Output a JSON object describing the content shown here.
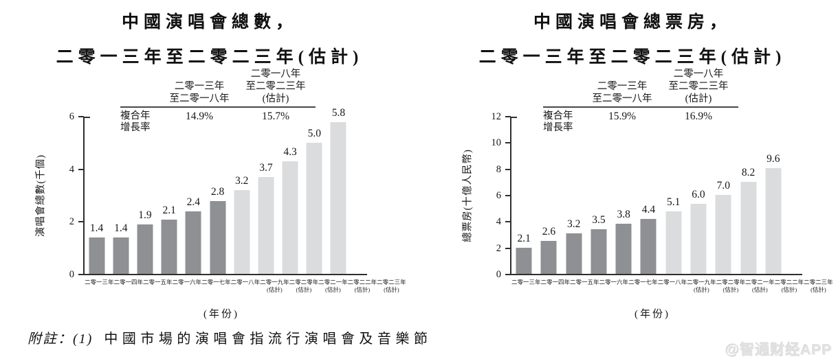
{
  "chart_data": [
    {
      "type": "bar",
      "title": "中國演唱會總數，二零一三年至二零二三年(估計)",
      "title_line1": "中國演唱會總數，",
      "title_line2": "二零一三年至二零二三年(估計)",
      "ylabel": "演唱會總數(千個)",
      "xlabel": "(年份)",
      "ylim": [
        0,
        6
      ],
      "yticks": [
        0,
        2,
        4,
        6
      ],
      "grid": false,
      "categories": [
        "二零一三年",
        "二零一四年",
        "二零一五年",
        "二零一六年",
        "二零一七年",
        "二零一八年",
        "二零一九年(估計)",
        "二零二零年(估計)",
        "二零二一年(估計)",
        "二零二二年(估計)",
        "二零二三年(估計)"
      ],
      "values": [
        1.4,
        1.4,
        1.9,
        2.1,
        2.4,
        2.8,
        3.2,
        3.7,
        4.3,
        5.0,
        5.8
      ],
      "estimated_from_index": 6,
      "colors": {
        "actual": "#8e9093",
        "estimate": "#dbdcde"
      },
      "cagr": {
        "row_label_line1": "複合年",
        "row_label_line2": "增長率",
        "columns": [
          {
            "header": [
              "二零一三年",
              "至二零一八年",
              ""
            ],
            "value": "14.9%"
          },
          {
            "header": [
              "二零一八年",
              "至二零二三年",
              "(估計)"
            ],
            "value": "15.7%"
          }
        ]
      }
    },
    {
      "type": "bar",
      "title": "中國演唱會總票房，二零一三年至二零二三年(估計)",
      "title_line1": "中國演唱會總票房，",
      "title_line2": "二零一三年至二零二三年(估計)",
      "ylabel": "總票房(十億人民幣)",
      "xlabel": "(年份)",
      "ylim": [
        0,
        12
      ],
      "yticks": [
        0,
        2,
        4,
        6,
        8,
        10,
        12
      ],
      "grid": false,
      "categories": [
        "二零一三年",
        "二零一四年",
        "二零一五年",
        "二零一六年",
        "二零一七年",
        "二零一八年",
        "二零一九年(估計)",
        "二零二零年(估計)",
        "二零二一年(估計)",
        "二零二二年(估計)",
        "二零二三年(估計)"
      ],
      "values": [
        2.1,
        2.6,
        3.2,
        3.5,
        3.8,
        4.4,
        5.1,
        6.0,
        7.0,
        8.2,
        9.6
      ],
      "bar_heights_as_drawn": [
        2.05,
        2.55,
        3.15,
        3.45,
        3.85,
        4.25,
        4.8,
        5.35,
        6.05,
        7.05,
        8.1
      ],
      "estimated_from_index": 6,
      "colors": {
        "actual": "#8e9093",
        "estimate": "#dbdcde"
      },
      "cagr": {
        "row_label_line1": "複合年",
        "row_label_line2": "增長率",
        "columns": [
          {
            "header": [
              "二零一三年",
              "至二零一八年",
              ""
            ],
            "value": "15.9%"
          },
          {
            "header": [
              "二零一八年",
              "至二零二三年",
              "(估計)"
            ],
            "value": "16.9%"
          }
        ]
      }
    }
  ],
  "footer": {
    "note_prefix": "附註：(1)",
    "note_text": "中國市場的演唱會指流行演唱會及音樂節",
    "watermark": "@智通财经APP"
  }
}
